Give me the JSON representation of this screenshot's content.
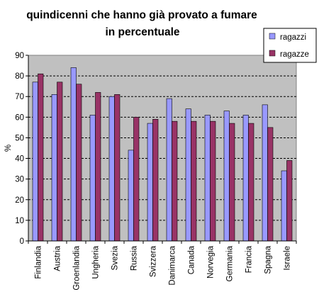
{
  "chart_data": {
    "type": "bar",
    "title_lines": [
      "quindicenni che hanno già provato a fumare",
      "in percentuale"
    ],
    "xlabel": "",
    "ylabel": "%",
    "ylim": [
      0,
      90
    ],
    "yticks": [
      0,
      10,
      20,
      30,
      40,
      50,
      60,
      70,
      80,
      90
    ],
    "grid": true,
    "legend_position": "top-right",
    "categories": [
      "Finlandia",
      "Austria",
      "Groenlandia",
      "Ungheria",
      "Svezia",
      "Russia",
      "Svizzera",
      "Danimarca",
      "Canada",
      "Norvegia",
      "Germania",
      "Francia",
      "Spagna",
      "Israele"
    ],
    "series": [
      {
        "name": "ragazzi",
        "color": "#9999ff",
        "values": [
          77,
          71,
          84,
          61,
          70,
          44,
          57,
          69,
          64,
          61,
          63,
          61,
          66,
          34
        ]
      },
      {
        "name": "ragazze",
        "color": "#993366",
        "values": [
          81,
          77,
          76,
          72,
          71,
          60,
          59,
          58,
          58,
          58,
          57,
          57,
          55,
          39
        ]
      }
    ],
    "plot_background": "#c0c0c0"
  }
}
